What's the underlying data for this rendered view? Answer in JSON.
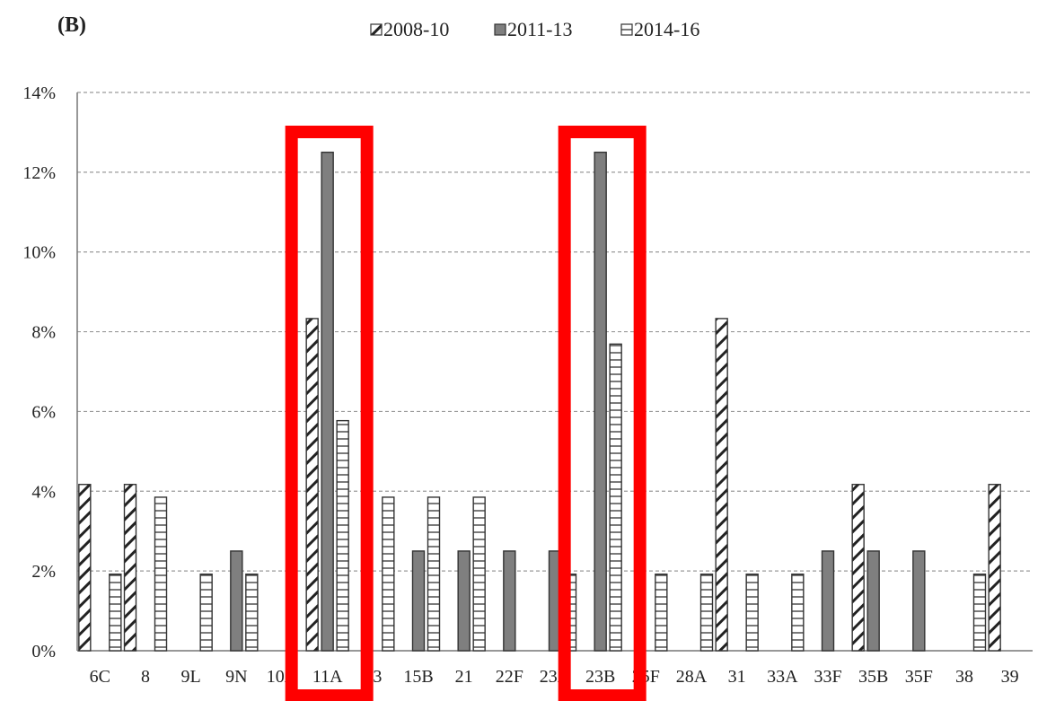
{
  "panel_label": "(B)",
  "highlight_color": "#ff0000",
  "colors": {
    "s2008": "#ffffff",
    "s2011": "#7f7f7f",
    "s2014": "#ffffff",
    "stroke": "#333333"
  },
  "chart_data": {
    "type": "bar",
    "categories": [
      "6C",
      "8",
      "9L",
      "9N",
      "10A",
      "11A",
      "13",
      "15B",
      "21",
      "22F",
      "23A",
      "23B",
      "25F",
      "28A",
      "31",
      "33A",
      "33F",
      "35B",
      "35F",
      "38",
      "39"
    ],
    "series": [
      {
        "name": "2008-10",
        "pattern": "diagonal-hatch",
        "values": [
          4.17,
          4.17,
          0,
          0,
          0,
          8.33,
          0,
          0,
          0,
          0,
          0,
          0,
          0,
          0,
          8.33,
          0,
          0,
          4.17,
          0,
          0,
          4.17
        ]
      },
      {
        "name": "2011-13",
        "pattern": "solid-gray",
        "values": [
          0,
          0,
          0,
          2.5,
          0,
          12.5,
          0,
          2.5,
          2.5,
          2.5,
          2.5,
          12.5,
          0,
          0,
          0,
          0,
          2.5,
          2.5,
          2.5,
          0,
          0
        ]
      },
      {
        "name": "2014-16",
        "pattern": "horizontal-lines",
        "values": [
          1.92,
          3.85,
          1.92,
          1.92,
          0,
          5.77,
          3.85,
          3.85,
          3.85,
          0,
          1.92,
          7.69,
          1.92,
          1.92,
          1.92,
          1.92,
          0,
          0,
          0,
          1.92,
          0
        ]
      }
    ],
    "ylim": [
      0,
      14
    ],
    "yticks": [
      0,
      2,
      4,
      6,
      8,
      10,
      12,
      14
    ],
    "ytick_format": "percent",
    "grid": true,
    "legend_position": "top-center",
    "highlighted_categories": [
      "11A",
      "23B"
    ]
  }
}
